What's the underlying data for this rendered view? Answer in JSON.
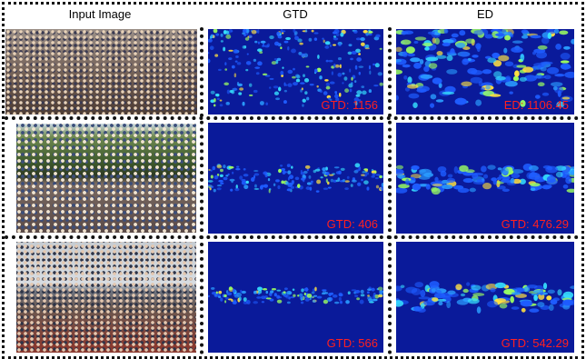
{
  "columns": [
    "Input Image",
    "GTD",
    "ED"
  ],
  "rows": [
    {
      "gtd_label": "GTD: 1156",
      "ed_label": "ED: 1106.45"
    },
    {
      "gtd_label": "GTD: 406",
      "ed_label": "GTD: 476.29"
    },
    {
      "gtd_label": "GTD: 566",
      "ed_label": "GTD: 542.29"
    }
  ]
}
